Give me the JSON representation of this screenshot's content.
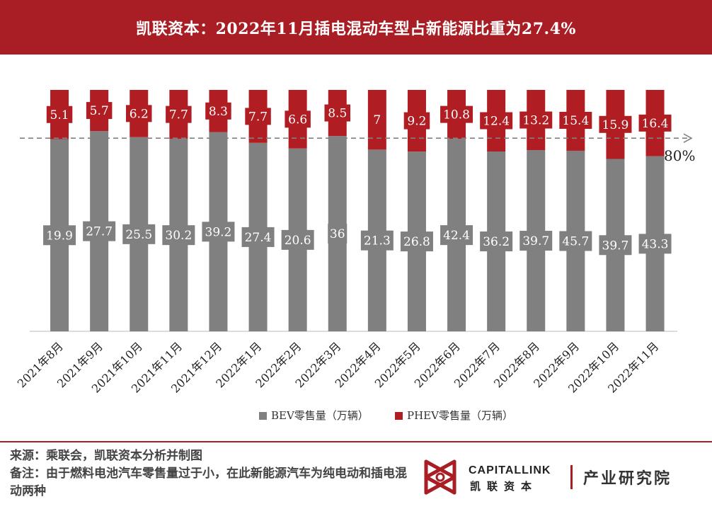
{
  "header": {
    "title": "凯联资本：2022年11月插电混动车型占新能源比重为27.4%"
  },
  "chart_data": {
    "type": "bar",
    "stacked": true,
    "categories": [
      "2021年8月",
      "2021年9月",
      "2021年10月",
      "2021年11月",
      "2021年12月",
      "2022年1月",
      "2022年2月",
      "2022年3月",
      "2022年4月",
      "2022年5月",
      "2022年6月",
      "2022年7月",
      "2022年8月",
      "2022年9月",
      "2022年10月",
      "2022年11月"
    ],
    "series": [
      {
        "name": "BEV零售量（万辆）",
        "color": "#808080",
        "values": [
          19.9,
          27.7,
          25.5,
          30.2,
          39.2,
          27.4,
          20.6,
          36,
          21.3,
          26.8,
          42.4,
          36.2,
          39.7,
          45.7,
          39.7,
          43.3
        ]
      },
      {
        "name": "PHEV零售量（万辆）",
        "color": "#b01e24",
        "values": [
          5.1,
          5.7,
          6.2,
          7.7,
          8.3,
          7.7,
          6.6,
          8.5,
          7,
          9.2,
          10.8,
          12.4,
          13.2,
          15.4,
          15.9,
          16.4
        ]
      }
    ],
    "normalized": "percent_share",
    "ylim": [
      0,
      100
    ],
    "reference_line": {
      "value": 80,
      "label": "80%"
    },
    "legend_position": "bottom"
  },
  "footer": {
    "source": "来源：乘联会，凯联资本分析并制图",
    "note": "备注：由于燃料电池汽车零售量过于小，在此新能源汽车为纯电动和插电混动两种"
  },
  "logo": {
    "name_en": "CAPITALLINK",
    "name_cn": "凯联资本",
    "institute": "产业研究院"
  },
  "colors": {
    "brand": "#a81e24",
    "bev": "#808080",
    "phev": "#b01e24"
  }
}
